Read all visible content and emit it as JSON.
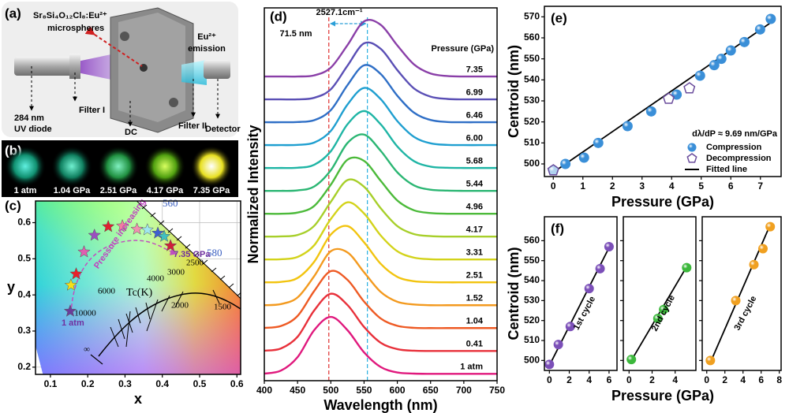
{
  "panel_a": {
    "label": "(a)",
    "sample": "Sr₈Si₄O₁₂Cl₈:Eu²⁺",
    "sample2": "microspheres",
    "emission": [
      "Eu²⁺",
      "emission"
    ],
    "source": [
      "284 nm",
      "UV diode"
    ],
    "filter1": "Filter I",
    "cell": "DC",
    "filter2": "Filter II",
    "detector": "Detector"
  },
  "panel_b": {
    "label": "(b)",
    "photos": [
      "1 atm",
      "1.04 GPa",
      "2.51 GPa",
      "4.17 GPa",
      "7.35 GPa"
    ]
  },
  "chart_data": [
    {
      "type": "cie",
      "panel_label": "(c)",
      "xlabel": "x",
      "ylabel": "y",
      "xlim": [
        0.06,
        0.61
      ],
      "ylim": [
        0.18,
        0.66
      ],
      "xticks": [
        0.1,
        0.2,
        0.3,
        0.4,
        0.5,
        0.6
      ],
      "yticks": [
        0.2,
        0.3,
        0.4,
        0.5,
        0.6
      ],
      "grid": true,
      "series": [
        {
          "marker": "star",
          "x": [
            0.153,
            0.155,
            0.169,
            0.19,
            0.218,
            0.255,
            0.293,
            0.332,
            0.36,
            0.388,
            0.405,
            0.422
          ],
          "values": [
            0.355,
            0.427,
            0.458,
            0.519,
            0.565,
            0.589,
            0.591,
            0.582,
            0.58,
            0.571,
            0.562,
            0.536
          ],
          "colors": [
            "#6a3d9a",
            "#f5e11a",
            "#e8202a",
            "#e060b0",
            "#9b4fc0",
            "#e02030",
            "#f080a0",
            "#f090b0",
            "#a0e8f0",
            "#4060d0",
            "#40c0c0",
            "#d0203a"
          ]
        }
      ],
      "annotations": [
        "1 atm",
        "Pressure increasing",
        "7.35 GPa",
        "Tc(K)"
      ],
      "locus_labels": [
        "560",
        "580"
      ],
      "isotherm_labels": [
        "10000",
        "6000",
        "4000",
        "3000",
        "2500",
        "2000",
        "1500",
        "∞"
      ]
    },
    {
      "type": "spectra",
      "panel_label": "(d)",
      "xlabel": "Wavelength (nm)",
      "ylabel": "Normalized Intensity",
      "legend_title": "Pressure (GPa)",
      "xlim": [
        400,
        750
      ],
      "ylim": [
        -0.3,
        16
      ],
      "xticks": [
        400,
        450,
        500,
        550,
        600,
        650,
        700,
        750
      ],
      "x": [
        400,
        425,
        450,
        475,
        500,
        525,
        550,
        575,
        600,
        625,
        650,
        675,
        700,
        725,
        750
      ],
      "series": [
        {
          "name": "1 atm",
          "color": "#e0197d",
          "values": [
            0.01,
            0.14,
            0.73,
            1.91,
            2.49,
            1.91,
            0.94,
            0.3,
            0.06,
            0.01,
            0,
            0,
            0,
            0,
            0
          ]
        },
        {
          "name": "0.41",
          "color": "#e8303a",
          "values": [
            1.01,
            1.11,
            1.62,
            2.77,
            3.5,
            3.01,
            2.05,
            1.36,
            1.08,
            1.01,
            1,
            1,
            1,
            1,
            1
          ]
        },
        {
          "name": "1.04",
          "color": "#ee5a24",
          "values": [
            2.01,
            2.09,
            2.53,
            3.62,
            4.49,
            4.11,
            3.16,
            2.42,
            2.1,
            2.01,
            2,
            2,
            2,
            2,
            2
          ]
        },
        {
          "name": "1.52",
          "color": "#f39a1f",
          "values": [
            3,
            3.05,
            3.34,
            4.27,
            5.36,
            5.31,
            4.44,
            3.58,
            3.15,
            3.03,
            3,
            3,
            3,
            3,
            3
          ]
        },
        {
          "name": "2.51",
          "color": "#f2c40f",
          "values": [
            4,
            4.02,
            4.19,
            4.9,
            6.09,
            6.46,
            5.75,
            4.81,
            4.24,
            4.05,
            4.01,
            4,
            4,
            4,
            4
          ]
        },
        {
          "name": "3.31",
          "color": "#d3d31a",
          "values": [
            5,
            5.01,
            5.11,
            5.62,
            6.77,
            7.5,
            7.01,
            6.05,
            5.36,
            5.08,
            5.01,
            5,
            5,
            5,
            5
          ]
        },
        {
          "name": "4.17",
          "color": "#a7cf2a",
          "values": [
            6,
            6.01,
            6.07,
            6.47,
            7.52,
            8.47,
            8.18,
            7.24,
            6.46,
            6.11,
            6.02,
            6,
            6,
            6,
            6
          ]
        },
        {
          "name": "4.96",
          "color": "#4cba3a",
          "values": [
            7,
            7,
            7.05,
            7.34,
            8.27,
            9.36,
            9.31,
            8.44,
            7.58,
            7.15,
            7.03,
            7,
            7,
            7,
            7
          ]
        },
        {
          "name": "5.44",
          "color": "#2bb673",
          "values": [
            8,
            8,
            8.02,
            8.19,
            8.9,
            10.09,
            10.46,
            9.75,
            8.81,
            8.24,
            8.05,
            8.01,
            8,
            8,
            8
          ]
        },
        {
          "name": "5.68",
          "color": "#1fb5a5",
          "values": [
            9,
            9,
            9.01,
            9.14,
            9.73,
            10.91,
            11.49,
            10.91,
            9.94,
            9.3,
            9.06,
            9.01,
            9,
            9,
            9
          ]
        },
        {
          "name": "6.00",
          "color": "#1f9fd0",
          "values": [
            10,
            10,
            10.01,
            10.11,
            10.62,
            11.77,
            12.5,
            12.01,
            11.05,
            10.36,
            10.08,
            10.01,
            10,
            10,
            10
          ]
        },
        {
          "name": "6.46",
          "color": "#2f6fc6",
          "values": [
            11,
            11,
            11.01,
            11.09,
            11.53,
            12.62,
            13.49,
            13.11,
            12.16,
            11.42,
            11.1,
            11.01,
            11,
            11,
            11
          ]
        },
        {
          "name": "6.99",
          "color": "#5a4fb5",
          "values": [
            12,
            12,
            12,
            12.07,
            12.44,
            13.47,
            14.45,
            14.21,
            13.28,
            12.48,
            12.12,
            12.02,
            12,
            12,
            12
          ]
        },
        {
          "name": "7.35",
          "color": "#8a3fa8",
          "values": [
            13,
            13,
            13,
            13.05,
            13.39,
            14.37,
            15.41,
            15.26,
            14.36,
            13.53,
            13.13,
            13.02,
            13,
            13,
            13
          ]
        }
      ],
      "vlines": [
        {
          "x": 497,
          "color": "#e03030"
        },
        {
          "x": 555,
          "color": "#2ab0e0"
        }
      ],
      "annotations": [
        "2527.1cm⁻¹",
        "71.5 nm"
      ]
    },
    {
      "type": "scatter",
      "panel_label": "(e)",
      "xlabel": "Pressure (GPa)",
      "ylabel": "Centroid (nm)",
      "xlim": [
        -0.3,
        7.7
      ],
      "ylim": [
        494,
        575
      ],
      "xticks": [
        0,
        1,
        2,
        3,
        4,
        5,
        6,
        7
      ],
      "yticks": [
        500,
        510,
        520,
        530,
        540,
        550,
        560,
        570
      ],
      "annotation": "dλ/dP ≈ 9.69 nm/GPa",
      "legend": "lower right",
      "series": [
        {
          "name": "Fitted line",
          "mode": "line",
          "color": "#000000",
          "x": [
            0,
            7.35
          ],
          "values": [
            496,
            567.2
          ]
        },
        {
          "name": "Compression",
          "mode": "markers",
          "marker": "sphere",
          "color": "#3a8fd8",
          "x": [
            0,
            0.41,
            1.04,
            1.52,
            2.51,
            3.31,
            4.17,
            4.96,
            5.44,
            5.68,
            6.0,
            6.46,
            6.99,
            7.35
          ],
          "values": [
            497,
            500,
            503,
            510,
            518,
            525,
            533,
            542,
            547,
            550,
            554,
            558,
            564,
            569
          ]
        },
        {
          "name": "Decompression",
          "mode": "markers",
          "marker": "pentagon",
          "color": "#6a4c9c",
          "x": [
            0,
            3.9,
            4.6
          ],
          "values": [
            497,
            531,
            536
          ]
        }
      ]
    },
    {
      "type": "scatter",
      "panel_label": "(f)",
      "ylabel": "Centroid (nm)",
      "annotation": "1st cycle",
      "xlim": [
        -0.5,
        6.8
      ],
      "ylim": [
        495,
        572
      ],
      "xticks": [
        0,
        2,
        4,
        6
      ],
      "yticks": [
        500,
        510,
        520,
        530,
        540,
        550,
        560
      ],
      "series": [
        {
          "mode": "line",
          "color": "#000000",
          "x": [
            0,
            6
          ],
          "values": [
            497.5,
            556.5
          ]
        },
        {
          "mode": "markers",
          "marker": "sphere",
          "color": "#7b4fb8",
          "x": [
            0,
            0.9,
            2.1,
            4,
            5.1,
            6
          ],
          "values": [
            498,
            508,
            517,
            536,
            546,
            557
          ]
        }
      ]
    },
    {
      "type": "scatter",
      "xlabel": "Pressure (GPa)",
      "annotation": "2nd cycle",
      "show_ytick_labels": false,
      "xlim": [
        -0.5,
        5.8
      ],
      "ylim": [
        495,
        572
      ],
      "xticks": [
        0,
        2,
        4
      ],
      "yticks": [
        500,
        510,
        520,
        530,
        540,
        550,
        560
      ],
      "series": [
        {
          "mode": "line",
          "color": "#000000",
          "x": [
            0.2,
            5
          ],
          "values": [
            500,
            547
          ]
        },
        {
          "mode": "markers",
          "marker": "sphere",
          "color": "#3cb83c",
          "x": [
            0.2,
            2.5,
            3,
            5
          ],
          "values": [
            500.5,
            521,
            525.5,
            546.5
          ]
        }
      ]
    },
    {
      "type": "scatter",
      "annotation": "3rd cycle",
      "show_ytick_labels": false,
      "xlim": [
        -0.5,
        8.2
      ],
      "ylim": [
        495,
        572
      ],
      "xticks": [
        0,
        2,
        4,
        6,
        8
      ],
      "yticks": [
        500,
        510,
        520,
        530,
        540,
        550,
        560
      ],
      "series": [
        {
          "mode": "line",
          "color": "#000000",
          "x": [
            0.4,
            7
          ],
          "values": [
            499,
            568
          ]
        },
        {
          "mode": "markers",
          "marker": "sphere",
          "color": "#f0a020",
          "x": [
            0.4,
            3.2,
            5.2,
            6.2,
            7
          ],
          "values": [
            500,
            530,
            548,
            556,
            567
          ]
        }
      ]
    }
  ]
}
